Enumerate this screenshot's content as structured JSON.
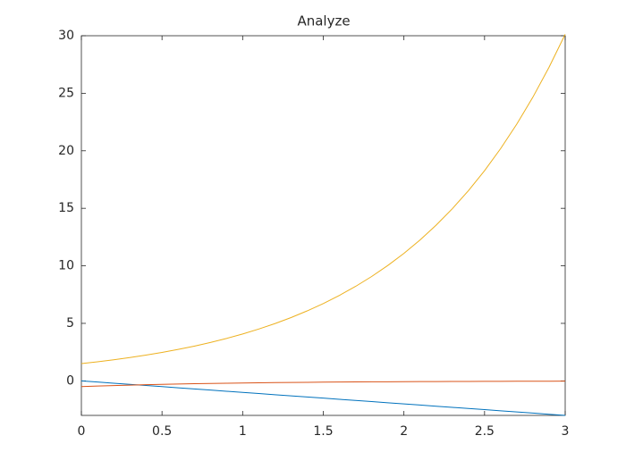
{
  "chart_data": {
    "type": "line",
    "title": "Analyze",
    "x": [
      0,
      0.1,
      0.2,
      0.3,
      0.4,
      0.5,
      0.6,
      0.7,
      0.8,
      0.9,
      1,
      1.1,
      1.2,
      1.3,
      1.4,
      1.5,
      1.6,
      1.7,
      1.8,
      1.9,
      2,
      2.1,
      2.2,
      2.3,
      2.4,
      2.5,
      2.6,
      2.7,
      2.8,
      2.9,
      3
    ],
    "series": [
      {
        "color": "#0072BD",
        "values": [
          0,
          -0.1,
          -0.2,
          -0.3,
          -0.4,
          -0.5,
          -0.6,
          -0.7,
          -0.8,
          -0.9,
          -1,
          -1.1,
          -1.2,
          -1.3,
          -1.4,
          -1.5,
          -1.6,
          -1.7,
          -1.8,
          -1.9,
          -2,
          -2.1,
          -2.2,
          -2.3,
          -2.4,
          -2.5,
          -2.6,
          -2.7,
          -2.8,
          -2.9,
          -3
        ]
      },
      {
        "color": "#D95319",
        "values": [
          -0.5,
          -0.452,
          -0.409,
          -0.37,
          -0.335,
          -0.303,
          -0.274,
          -0.248,
          -0.225,
          -0.203,
          -0.184,
          -0.166,
          -0.151,
          -0.136,
          -0.123,
          -0.112,
          -0.101,
          -0.091,
          -0.083,
          -0.075,
          -0.068,
          -0.061,
          -0.055,
          -0.05,
          -0.045,
          -0.041,
          -0.037,
          -0.034,
          -0.03,
          -0.028,
          -0.025
        ]
      },
      {
        "color": "#EDB120",
        "values": [
          1.5,
          1.658,
          1.832,
          2.025,
          2.238,
          2.473,
          2.733,
          3.021,
          3.338,
          3.689,
          4.077,
          4.506,
          4.98,
          5.504,
          6.083,
          6.723,
          7.43,
          8.211,
          9.074,
          10.029,
          11.084,
          12.249,
          13.538,
          14.961,
          16.535,
          18.274,
          20.196,
          22.32,
          24.667,
          27.261,
          30.128
        ]
      }
    ],
    "xlim": [
      0,
      3
    ],
    "xticks": [
      0,
      0.5,
      1,
      1.5,
      2,
      2.5,
      3
    ],
    "ylim": [
      -3,
      30
    ],
    "yticks": [
      0,
      5,
      10,
      15,
      20,
      25,
      30
    ]
  }
}
